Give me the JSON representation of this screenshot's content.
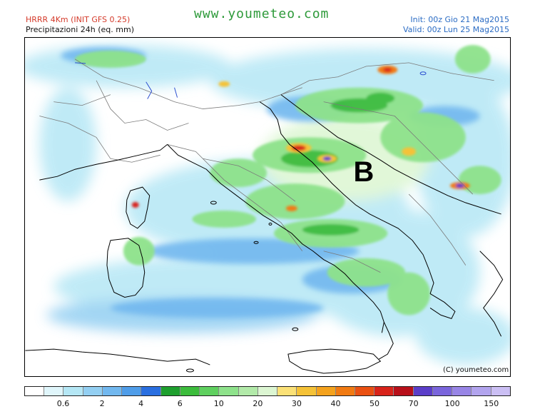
{
  "header": {
    "model": "HRRR 4Km (INIT GFS 0.25)",
    "field": "Precipitazioni 24h (eq. mm)",
    "site": "www.youmeteo.com",
    "init": "Init: 00z Gio   21 Mag2015",
    "valid": "Valid: 00z Lun   25 Mag2015"
  },
  "map": {
    "pressure_label": "B",
    "copyright": "(C) youmeteo.com",
    "colors": {
      "sea": "#ffffff",
      "coast": "#000000",
      "border": "#7a7a7a"
    }
  },
  "legend": {
    "colors": [
      "#ffffff",
      "#e0f6fb",
      "#b5e7f5",
      "#93cff2",
      "#72b8ef",
      "#4f9de9",
      "#2a6fe0",
      "#1e9f2e",
      "#3cbc3c",
      "#5fd05f",
      "#8ee28b",
      "#b2eaa9",
      "#dcf6d2",
      "#fbe177",
      "#f5c237",
      "#f4a21d",
      "#f17a12",
      "#ea5012",
      "#d8231a",
      "#b8101a",
      "#5b3ec9",
      "#7a65dc",
      "#9885e6",
      "#b2a4ee",
      "#cbbff4"
    ],
    "labels": [
      "0.6",
      "2",
      "4",
      "6",
      "10",
      "20",
      "30",
      "40",
      "50",
      "70",
      "100",
      "150"
    ]
  }
}
